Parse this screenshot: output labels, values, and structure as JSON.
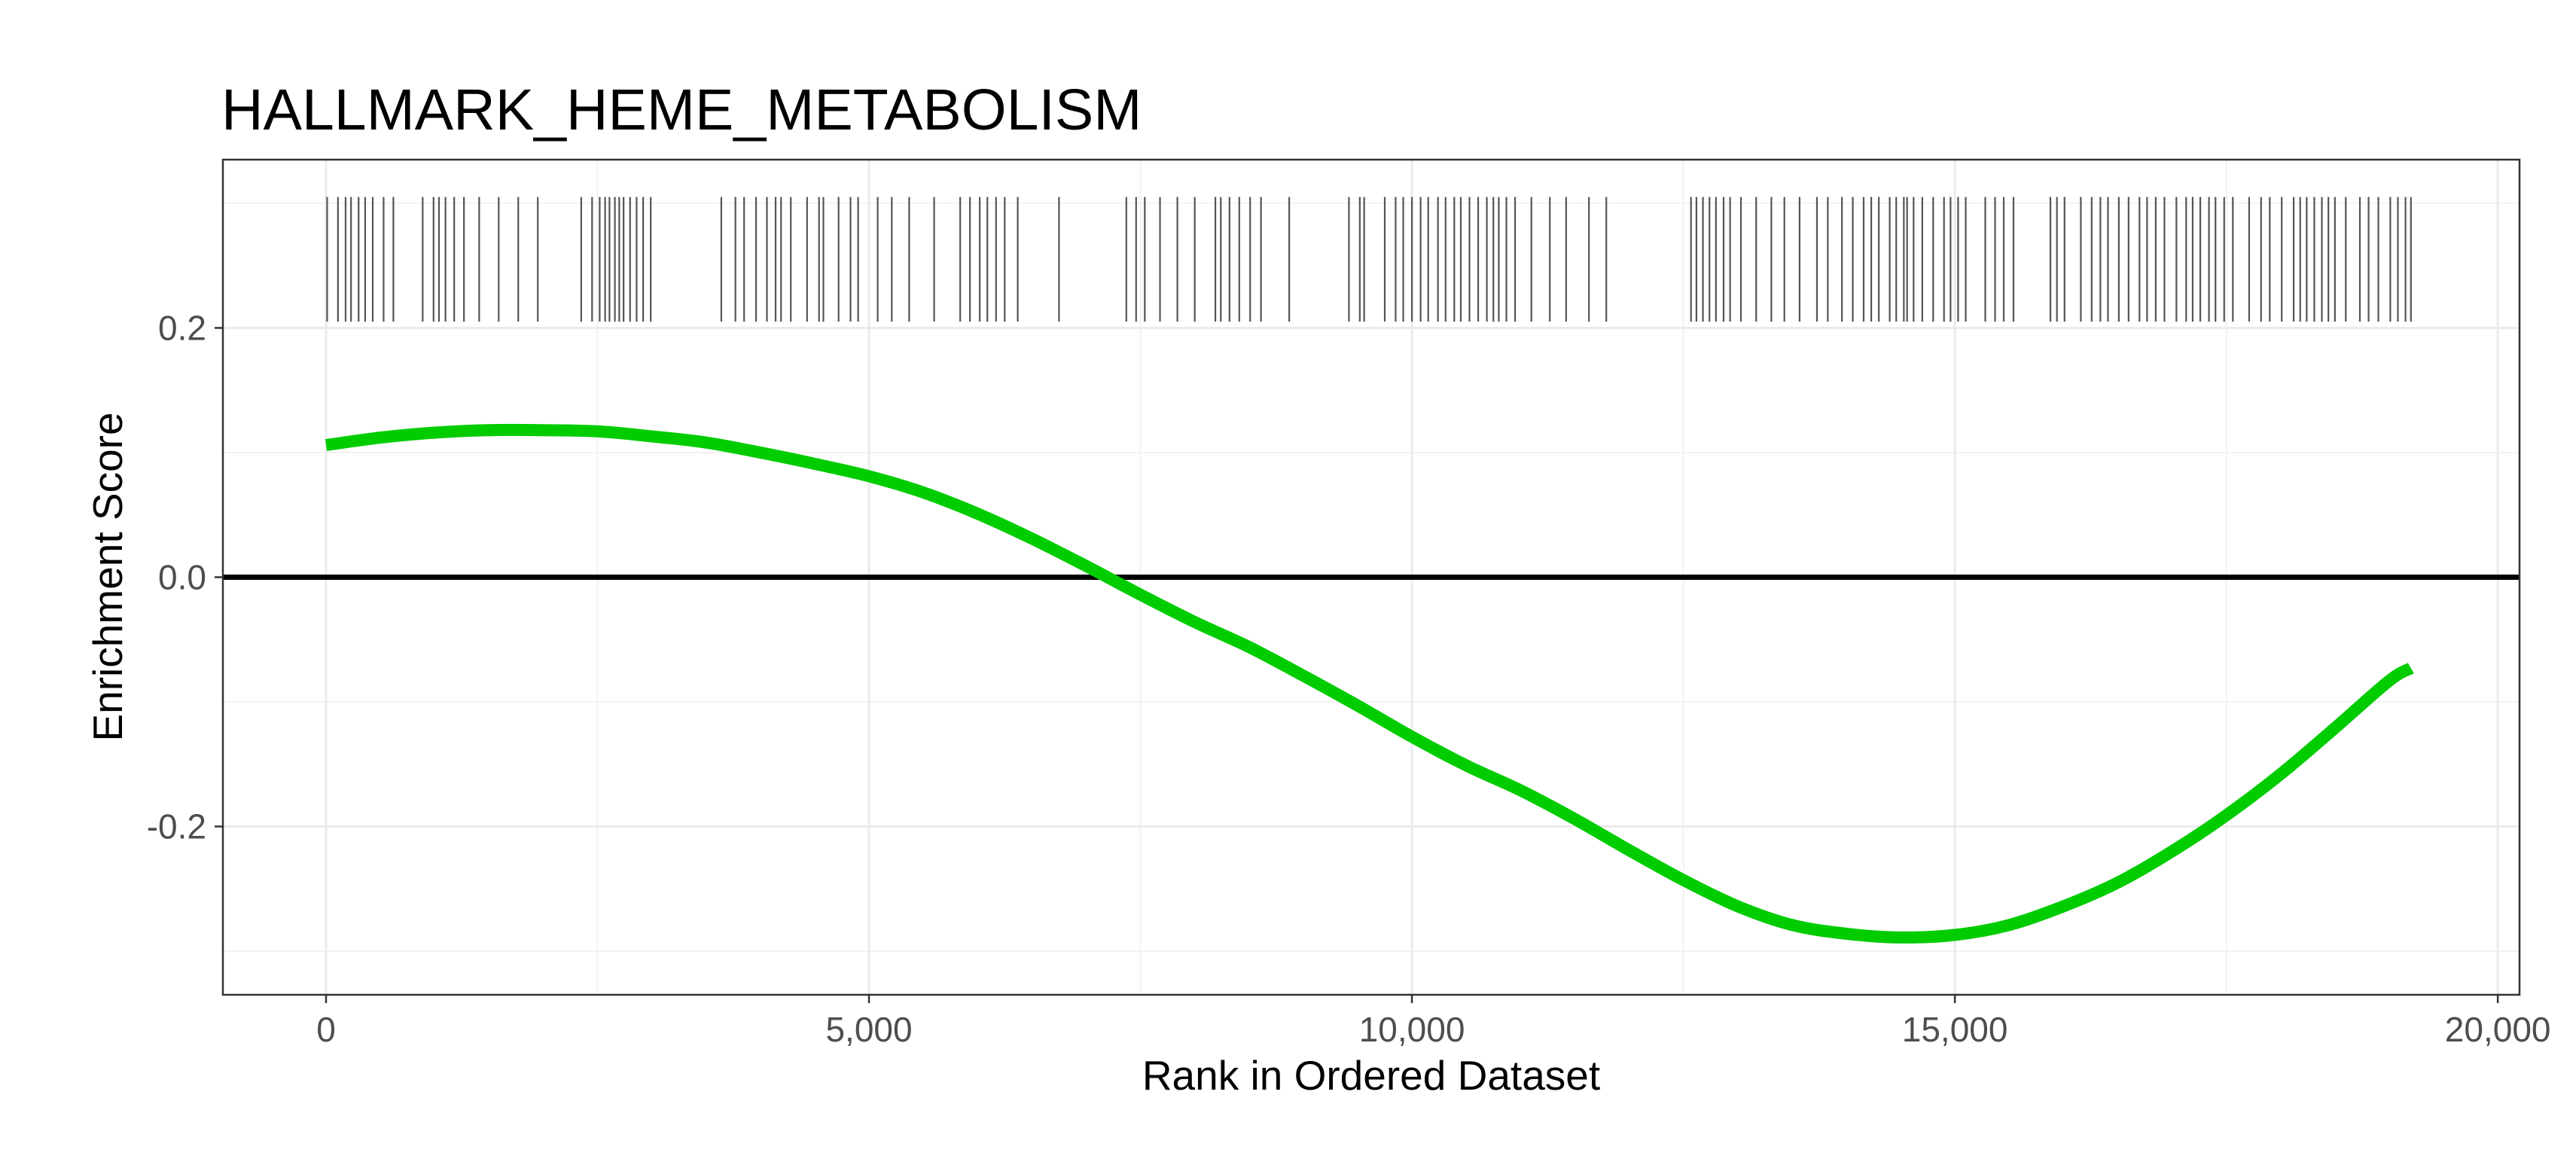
{
  "chart_data": {
    "type": "line",
    "title": "HALLMARK_HEME_METABOLISM",
    "xlabel": "Rank in Ordered Dataset",
    "ylabel": "Enrichment Score",
    "xlim": [
      -950,
      20200
    ],
    "ylim": [
      -0.335,
      0.335
    ],
    "x_ticks": [
      0,
      5000,
      10000,
      15000,
      20000
    ],
    "x_tick_labels": [
      "0",
      "5,000",
      "10,000",
      "15,000",
      "20,000"
    ],
    "y_ticks": [
      -0.2,
      0.0,
      0.2
    ],
    "y_tick_labels": [
      "-0.2",
      "0.0",
      "0.2"
    ],
    "grid": true,
    "zero_line": 0.0,
    "series": [
      {
        "color": "#00cc00",
        "x": [
          0,
          500,
          1000,
          1500,
          2000,
          2500,
          3000,
          3500,
          4000,
          4500,
          5000,
          5500,
          6000,
          6500,
          7000,
          7500,
          8000,
          8500,
          9000,
          9500,
          10000,
          10500,
          11000,
          11500,
          12000,
          12500,
          13000,
          13500,
          14000,
          14500,
          15000,
          15500,
          16000,
          16500,
          17000,
          17500,
          18000,
          18500,
          19000,
          19200
        ],
        "y": [
          0.106,
          0.112,
          0.116,
          0.118,
          0.118,
          0.117,
          0.113,
          0.108,
          0.1,
          0.091,
          0.081,
          0.068,
          0.051,
          0.031,
          0.009,
          -0.014,
          -0.036,
          -0.056,
          -0.079,
          -0.103,
          -0.128,
          -0.151,
          -0.171,
          -0.194,
          -0.219,
          -0.243,
          -0.264,
          -0.279,
          -0.286,
          -0.289,
          -0.287,
          -0.279,
          -0.264,
          -0.245,
          -0.22,
          -0.191,
          -0.158,
          -0.121,
          -0.083,
          -0.073
        ]
      }
    ],
    "hit_ranks": {
      "color": "#555555",
      "y_range": [
        0.205,
        0.305
      ],
      "x": [
        10,
        110,
        180,
        230,
        300,
        360,
        430,
        530,
        620,
        890,
        990,
        1040,
        1100,
        1180,
        1270,
        1410,
        1590,
        1770,
        1950,
        2350,
        2450,
        2520,
        2570,
        2610,
        2660,
        2700,
        2740,
        2800,
        2860,
        2920,
        2990,
        3640,
        3770,
        3850,
        3960,
        4060,
        4140,
        4190,
        4280,
        4430,
        4540,
        4580,
        4720,
        4830,
        4900,
        5080,
        5210,
        5370,
        5600,
        5840,
        5930,
        6020,
        6090,
        6170,
        6250,
        6370,
        6750,
        7370,
        7460,
        7540,
        7680,
        7840,
        8000,
        8190,
        8240,
        8320,
        8410,
        8510,
        8610,
        8870,
        9420,
        9520,
        9560,
        9750,
        9850,
        9920,
        10000,
        10080,
        10150,
        10240,
        10310,
        10390,
        10450,
        10530,
        10610,
        10690,
        10750,
        10800,
        10870,
        10950,
        11100,
        11270,
        11420,
        11630,
        11790,
        12570,
        12620,
        12680,
        12740,
        12800,
        12870,
        12930,
        13030,
        13170,
        13310,
        13430,
        13570,
        13730,
        13830,
        13960,
        14060,
        14160,
        14230,
        14300,
        14400,
        14460,
        14530,
        14560,
        14620,
        14700,
        14800,
        14900,
        14960,
        15030,
        15100,
        15280,
        15370,
        15450,
        15540,
        15880,
        15940,
        16010,
        16160,
        16260,
        16340,
        16410,
        16510,
        16600,
        16700,
        16770,
        16850,
        16930,
        17040,
        17130,
        17190,
        17260,
        17340,
        17400,
        17480,
        17560,
        17710,
        17820,
        17900,
        18010,
        18120,
        18180,
        18240,
        18310,
        18380,
        18440,
        18500,
        18600,
        18730,
        18810,
        18900,
        19010,
        19080,
        19150,
        19200
      ]
    }
  }
}
